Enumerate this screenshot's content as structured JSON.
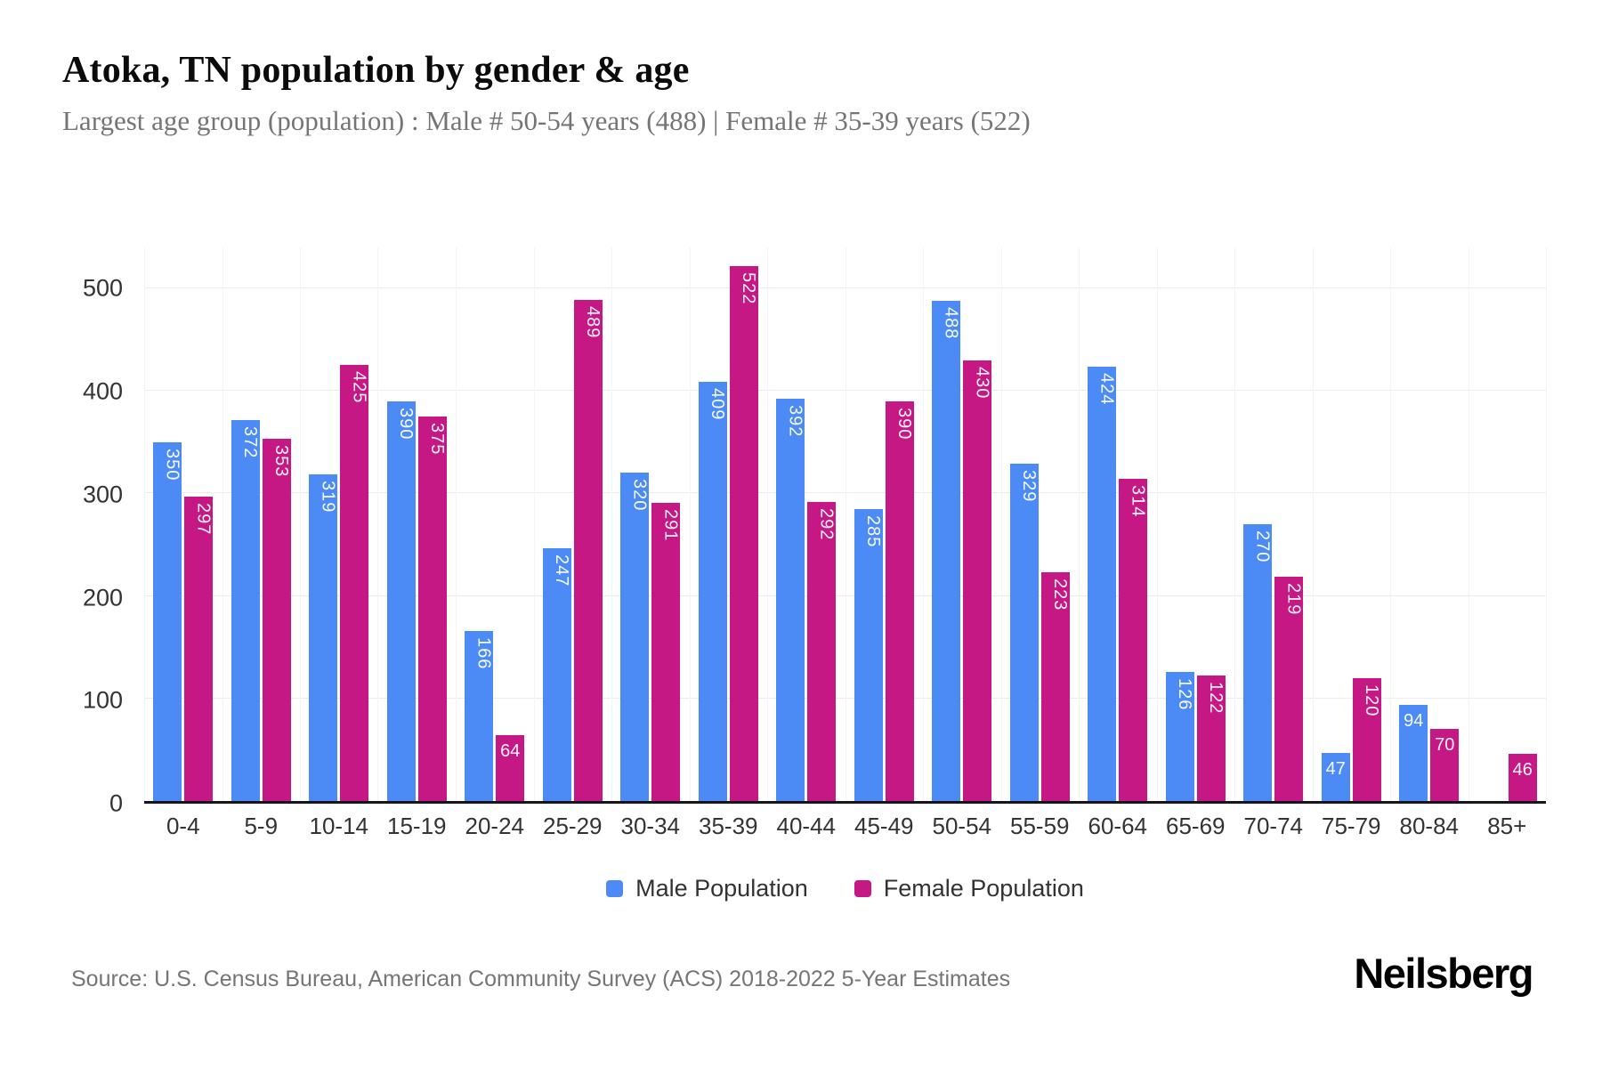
{
  "header": {
    "title": "Atoka, TN population by gender & age",
    "subtitle": "Largest age group (population) : Male # 50-54 years (488) | Female # 35-39 years (522)"
  },
  "chart_data": {
    "type": "bar",
    "title": "Atoka, TN population by gender & age",
    "subtitle": "Largest age group (population) : Male # 50-54 years (488) | Female # 35-39 years (522)",
    "categories": [
      "0-4",
      "5-9",
      "10-14",
      "15-19",
      "20-24",
      "25-29",
      "30-34",
      "35-39",
      "40-44",
      "45-49",
      "50-54",
      "55-59",
      "60-64",
      "65-69",
      "70-74",
      "75-79",
      "80-84",
      "85+"
    ],
    "series": [
      {
        "name": "Male Population",
        "color": "#4C8BF5",
        "values": [
          350,
          372,
          319,
          390,
          166,
          247,
          320,
          409,
          392,
          285,
          488,
          329,
          424,
          126,
          270,
          47,
          94,
          0
        ]
      },
      {
        "name": "Female Population",
        "color": "#C51884",
        "values": [
          297,
          353,
          425,
          375,
          64,
          489,
          291,
          522,
          292,
          390,
          430,
          223,
          314,
          122,
          219,
          120,
          70,
          46
        ]
      }
    ],
    "xlabel": "",
    "ylabel": "",
    "ylim": [
      0,
      540
    ],
    "yticks": [
      0,
      100,
      200,
      300,
      400,
      500
    ],
    "grid": "horizontal gridlines + faint category boundary lines",
    "legend_position": "bottom-center",
    "bar_label_style": "white value labels inside bar tops; rotated 90deg when value >= 100, horizontal otherwise",
    "axis_line_color": "#16151d"
  },
  "footer": {
    "source": "Source: U.S. Census Bureau, American Community Survey (ACS) 2018-2022 5-Year Estimates",
    "brand": "Neilsberg"
  }
}
